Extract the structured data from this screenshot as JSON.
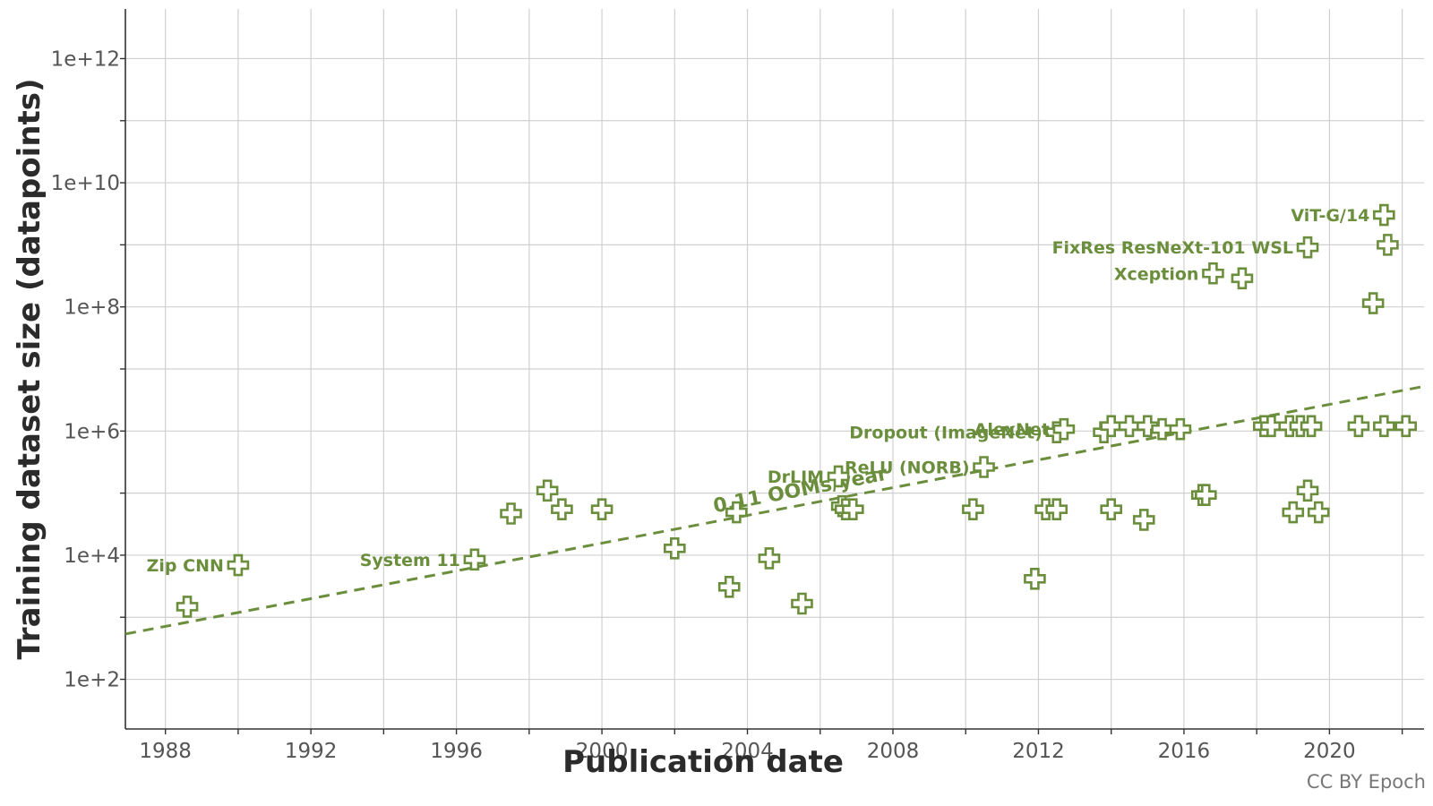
{
  "chart_data": {
    "type": "scatter",
    "xlabel": "Publication date",
    "ylabel": "Training dataset size (datapoints)",
    "y_scale": "log10",
    "xlim": [
      1986.9,
      2022.6
    ],
    "ylim_exponent": [
      1.2,
      12.8
    ],
    "x_ticks": [
      1988,
      1992,
      1996,
      2000,
      2004,
      2008,
      2012,
      2016,
      2020
    ],
    "y_ticks": [
      {
        "exp": 2,
        "label": "1e+2"
      },
      {
        "exp": 4,
        "label": "1e+4"
      },
      {
        "exp": 6,
        "label": "1e+6"
      },
      {
        "exp": 8,
        "label": "1e+8"
      },
      {
        "exp": 10,
        "label": "1e+10"
      },
      {
        "exp": 12,
        "label": "1e+12"
      }
    ],
    "grid": true,
    "marker": "open-cross",
    "color": "#6b8e3d",
    "trend": {
      "label": "0.11 OOMs/year",
      "x": [
        1986.9,
        2022.6
      ],
      "log10_y": [
        2.73,
        6.72
      ]
    },
    "points": [
      {
        "x": 1988.6,
        "log10_y": 3.17,
        "label": ""
      },
      {
        "x": 1990.0,
        "log10_y": 3.84,
        "label": "Zip CNN"
      },
      {
        "x": 1996.5,
        "log10_y": 3.93,
        "label": "System 11"
      },
      {
        "x": 1997.5,
        "log10_y": 4.67,
        "label": ""
      },
      {
        "x": 1998.5,
        "log10_y": 5.04,
        "label": ""
      },
      {
        "x": 1998.9,
        "log10_y": 4.74,
        "label": ""
      },
      {
        "x": 2000.0,
        "log10_y": 4.74,
        "label": ""
      },
      {
        "x": 2002.0,
        "log10_y": 4.11,
        "label": ""
      },
      {
        "x": 2003.5,
        "log10_y": 3.49,
        "label": ""
      },
      {
        "x": 2003.7,
        "log10_y": 4.69,
        "label": ""
      },
      {
        "x": 2004.6,
        "log10_y": 3.95,
        "label": ""
      },
      {
        "x": 2005.5,
        "log10_y": 3.22,
        "label": ""
      },
      {
        "x": 2006.6,
        "log10_y": 4.79,
        "label": ""
      },
      {
        "x": 2006.7,
        "log10_y": 4.74,
        "label": ""
      },
      {
        "x": 2006.9,
        "log10_y": 4.74,
        "label": ""
      },
      {
        "x": 2006.5,
        "log10_y": 5.27,
        "label": "DrLIM"
      },
      {
        "x": 2010.2,
        "log10_y": 4.74,
        "label": ""
      },
      {
        "x": 2010.5,
        "log10_y": 5.42,
        "label": "ReLU (NORB)"
      },
      {
        "x": 2011.9,
        "log10_y": 3.62,
        "label": ""
      },
      {
        "x": 2012.2,
        "log10_y": 4.74,
        "label": ""
      },
      {
        "x": 2012.5,
        "log10_y": 4.74,
        "label": ""
      },
      {
        "x": 2012.5,
        "log10_y": 5.98,
        "label": "Dropout (ImageNet)"
      },
      {
        "x": 2012.7,
        "log10_y": 6.03,
        "label": "AlexNet"
      },
      {
        "x": 2013.8,
        "log10_y": 5.98,
        "label": ""
      },
      {
        "x": 2014.0,
        "log10_y": 4.74,
        "label": ""
      },
      {
        "x": 2014.0,
        "log10_y": 6.08,
        "label": ""
      },
      {
        "x": 2014.5,
        "log10_y": 6.08,
        "label": ""
      },
      {
        "x": 2014.9,
        "log10_y": 4.57,
        "label": ""
      },
      {
        "x": 2015.0,
        "log10_y": 6.08,
        "label": ""
      },
      {
        "x": 2015.4,
        "log10_y": 6.03,
        "label": ""
      },
      {
        "x": 2015.9,
        "log10_y": 6.03,
        "label": ""
      },
      {
        "x": 2016.5,
        "log10_y": 4.97,
        "label": ""
      },
      {
        "x": 2016.6,
        "log10_y": 4.97,
        "label": ""
      },
      {
        "x": 2016.8,
        "log10_y": 8.54,
        "label": "Xception"
      },
      {
        "x": 2017.6,
        "log10_y": 8.46,
        "label": ""
      },
      {
        "x": 2018.2,
        "log10_y": 6.08,
        "label": ""
      },
      {
        "x": 2018.4,
        "log10_y": 6.08,
        "label": ""
      },
      {
        "x": 2018.9,
        "log10_y": 6.08,
        "label": ""
      },
      {
        "x": 2019.2,
        "log10_y": 6.08,
        "label": ""
      },
      {
        "x": 2019.5,
        "log10_y": 6.08,
        "label": ""
      },
      {
        "x": 2019.0,
        "log10_y": 4.69,
        "label": ""
      },
      {
        "x": 2019.4,
        "log10_y": 5.04,
        "label": ""
      },
      {
        "x": 2019.7,
        "log10_y": 4.69,
        "label": ""
      },
      {
        "x": 2019.4,
        "log10_y": 8.96,
        "label": "FixRes ResNeXt-101 WSL"
      },
      {
        "x": 2020.8,
        "log10_y": 6.08,
        "label": ""
      },
      {
        "x": 2021.2,
        "log10_y": 8.06,
        "label": ""
      },
      {
        "x": 2021.5,
        "log10_y": 6.08,
        "label": ""
      },
      {
        "x": 2021.5,
        "log10_y": 9.48,
        "label": "ViT-G/14"
      },
      {
        "x": 2021.6,
        "log10_y": 9.0,
        "label": ""
      },
      {
        "x": 2022.1,
        "log10_y": 6.08,
        "label": ""
      }
    ]
  },
  "credit": "CC BY Epoch"
}
